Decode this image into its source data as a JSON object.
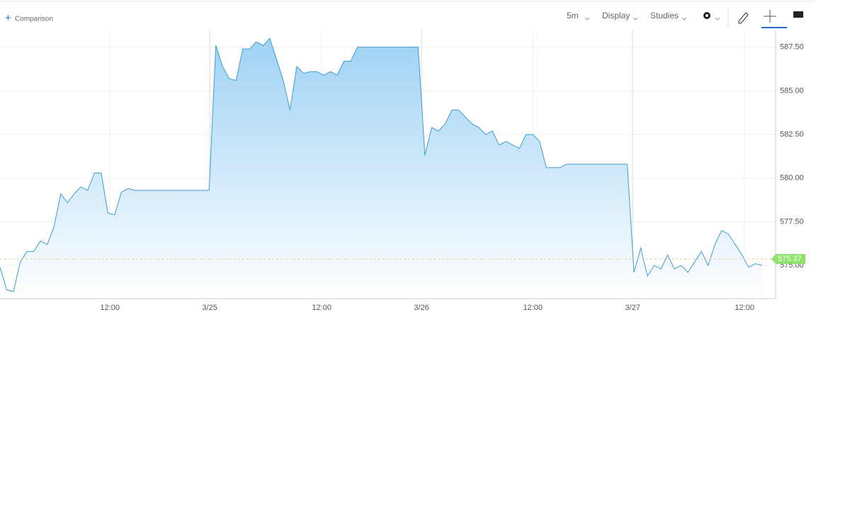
{
  "toolbar": {
    "comparison": "Comparison",
    "interval": "5m",
    "display": "Display",
    "studies": "Studies"
  },
  "chart_data": {
    "type": "area",
    "series": [
      {
        "color": "#3d9ccf",
        "values": [
          574.9,
          573.6,
          573.5,
          575.2,
          575.8,
          575.8,
          576.4,
          576.2,
          577.2,
          579.1,
          578.6,
          579.1,
          579.5,
          579.3,
          580.3,
          580.3,
          578.0,
          577.9,
          579.2,
          579.4,
          579.3,
          579.3,
          579.3,
          579.3,
          579.3,
          579.3,
          579.3,
          579.3,
          579.3,
          579.3,
          579.3,
          579.3,
          587.6,
          586.4,
          585.7,
          585.6,
          587.4,
          587.4,
          587.8,
          587.6,
          588.0,
          586.8,
          585.6,
          583.9,
          586.4,
          586.0,
          586.1,
          586.1,
          585.9,
          586.1,
          585.9,
          586.7,
          586.7,
          587.5,
          587.5,
          587.5,
          587.5,
          587.5,
          587.5,
          587.5,
          587.5,
          587.5,
          587.5,
          581.3,
          582.9,
          582.7,
          583.1,
          583.9,
          583.9,
          583.5,
          583.1,
          582.9,
          582.5,
          582.7,
          581.9,
          582.1,
          581.9,
          581.7,
          582.5,
          582.5,
          582.1,
          580.6,
          580.6,
          580.6,
          580.8,
          580.8,
          580.8,
          580.8,
          580.8,
          580.8,
          580.8,
          580.8,
          580.8,
          580.8,
          574.6,
          576.0,
          574.4,
          575.0,
          574.8,
          575.6,
          574.8,
          575.0,
          574.6,
          575.2,
          575.8,
          575.0,
          576.2,
          577.0,
          576.8,
          576.2,
          575.6,
          574.9,
          575.1,
          575.0
        ]
      }
    ],
    "last_price": 575.37,
    "xlim": [
      0,
      115
    ],
    "xticks": [
      {
        "value": 16.3,
        "label": "12:00"
      },
      {
        "value": 31.1,
        "label": "3/25"
      },
      {
        "value": 47.7,
        "label": "12:00"
      },
      {
        "value": 62.5,
        "label": "3/26"
      },
      {
        "value": 79,
        "label": "12:00"
      },
      {
        "value": 93.8,
        "label": "3/27"
      },
      {
        "value": 110.4,
        "label": "12:00"
      }
    ],
    "ylim": [
      573.1,
      588.5
    ],
    "yticks": [
      {
        "value": 575,
        "label": "575.00"
      },
      {
        "value": 577.5,
        "label": "577.50"
      },
      {
        "value": 580,
        "label": "580.00"
      },
      {
        "value": 582.5,
        "label": "582.50"
      },
      {
        "value": 585,
        "label": "585.00"
      },
      {
        "value": 587.5,
        "label": "587.50"
      }
    ],
    "grid": true
  }
}
